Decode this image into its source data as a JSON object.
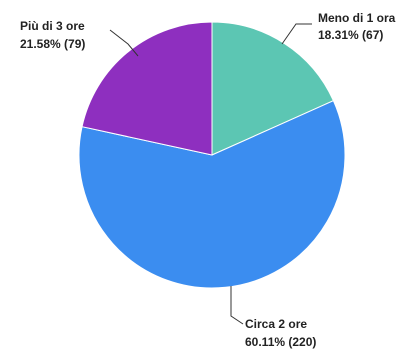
{
  "chart_data": {
    "type": "pie",
    "slices": [
      {
        "name": "Meno di 1 ora",
        "percent_label": "18.31% (67)",
        "value": 67,
        "color": "#5cc6b3"
      },
      {
        "name": "Circa 2 ore",
        "percent_label": "60.11% (220)",
        "value": 220,
        "color": "#3b8df0"
      },
      {
        "name": "Più di 3 ore",
        "percent_label": "21.58% (79)",
        "value": 79,
        "color": "#8e2fbf"
      }
    ],
    "start_angle_deg": 0,
    "direction": "clockwise",
    "legend": "none"
  }
}
